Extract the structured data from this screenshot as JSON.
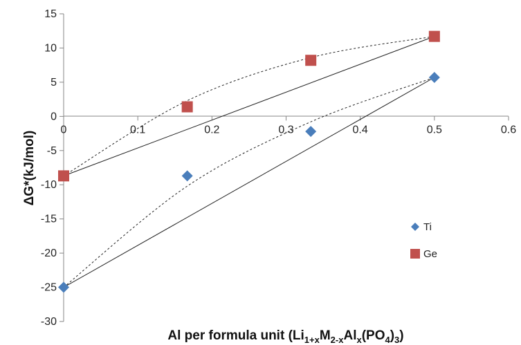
{
  "chart_data": {
    "type": "scatter",
    "xlabel": {
      "prefix": "Al per formula unit (Li",
      "sub1": "1+x",
      "mid1": "M",
      "sub2": "2-x",
      "mid2": "Al",
      "sub3": "x",
      "mid3": "(PO",
      "sub4": "4",
      "mid4": ")",
      "sub5": "3",
      "suffix": ")"
    },
    "ylabel": "ΔG*(kJ/mol)",
    "xlim": [
      0,
      0.6
    ],
    "ylim": [
      -30,
      15
    ],
    "x_ticks": [
      "0",
      "0.1",
      "0.2",
      "0.3",
      "0.4",
      "0.5",
      "0.6"
    ],
    "y_ticks": [
      "15",
      "10",
      "5",
      "0",
      "-5",
      "-10",
      "-15",
      "-20",
      "-25",
      "-30"
    ],
    "grid": false,
    "legend_position": "right",
    "series": [
      {
        "name": "Ti",
        "marker": "diamond",
        "color": "#4a7ebb",
        "x": [
          0,
          0.1667,
          0.3333,
          0.5
        ],
        "y": [
          -25.0,
          -8.7,
          -2.2,
          5.7
        ]
      },
      {
        "name": "Ge",
        "marker": "square",
        "color": "#c0504d",
        "x": [
          0,
          0.1667,
          0.3333,
          0.5
        ],
        "y": [
          -8.7,
          1.4,
          8.2,
          11.7
        ]
      }
    ],
    "lines": [
      {
        "style": "solid",
        "points": [
          [
            0,
            -25.0
          ],
          [
            0.5,
            5.7
          ]
        ]
      },
      {
        "style": "solid",
        "points": [
          [
            0,
            -8.7
          ],
          [
            0.5,
            11.7
          ]
        ]
      },
      {
        "style": "dotted",
        "points": [
          [
            0,
            -25.0
          ],
          [
            0.1667,
            -10.2
          ],
          [
            0.3333,
            -0.8
          ],
          [
            0.5,
            5.7
          ]
        ]
      },
      {
        "style": "dotted",
        "points": [
          [
            0,
            -8.7
          ],
          [
            0.1667,
            2.3
          ],
          [
            0.3333,
            8.6
          ],
          [
            0.5,
            11.7
          ]
        ]
      }
    ]
  }
}
